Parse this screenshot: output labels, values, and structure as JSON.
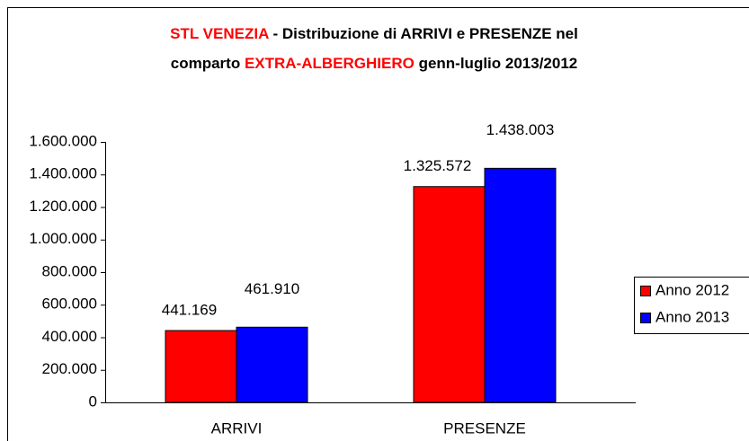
{
  "chart_data": {
    "type": "bar",
    "title_lines": [
      [
        {
          "text": "STL VENEZIA",
          "color": "#ff0000"
        },
        {
          "text": " - Distribuzione di ARRIVI e PRESENZE nel",
          "color": "#000000"
        }
      ],
      [
        {
          "text": "comparto ",
          "color": "#000000"
        },
        {
          "text": "EXTRA-ALBERGHIERO",
          "color": "#ff0000"
        },
        {
          "text": " genn-luglio 2013/2012",
          "color": "#000000"
        }
      ]
    ],
    "categories": [
      "ARRIVI",
      "PRESENZE"
    ],
    "series": [
      {
        "name": "Anno 2012",
        "color": "#ff0000",
        "values": [
          441169,
          1325572
        ],
        "value_labels": [
          "441.169",
          "1.325.572"
        ]
      },
      {
        "name": "Anno 2013",
        "color": "#0000ff",
        "values": [
          461910,
          1438003
        ],
        "value_labels": [
          "461.910",
          "1.438.003"
        ]
      }
    ],
    "ylim": [
      0,
      1600000
    ],
    "yticks": [
      0,
      {
        "value": 200000,
        "label": "200.000"
      },
      {
        "value": 400000,
        "label": "400.000"
      },
      {
        "value": 600000,
        "label": "600.000"
      },
      {
        "value": 800000,
        "label": "800.000"
      },
      {
        "value": 1000000,
        "label": "1.000.000"
      },
      {
        "value": 1200000,
        "label": "1.200.000"
      },
      {
        "value": 1400000,
        "label": "1.400.000"
      },
      {
        "value": 1600000,
        "label": "1.600.000"
      }
    ],
    "legend": "right"
  }
}
